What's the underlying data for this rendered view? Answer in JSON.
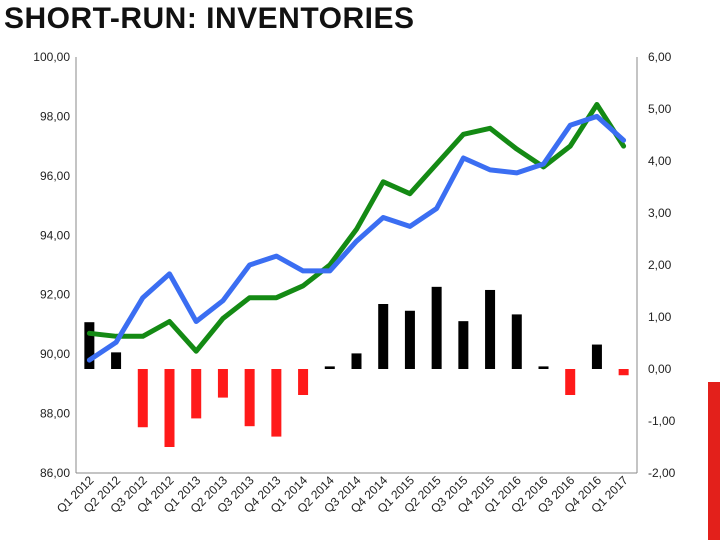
{
  "header": {
    "title": "SHORT-RUN: INVENTORIES"
  },
  "colors": {
    "accent_strip": "#e3201b",
    "bar_positive": "#000000",
    "bar_negative": "#ff1a1a",
    "series_green": "#148a14",
    "series_blue": "#3b6ef2"
  },
  "chart_data": {
    "type": "bar+line",
    "title": "SHORT-RUN: INVENTORIES",
    "categories": [
      "Q1 2012",
      "Q2 2012",
      "Q3 2012",
      "Q4 2012",
      "Q1 2013",
      "Q2 2013",
      "Q3 2013",
      "Q4 2013",
      "Q1 2014",
      "Q2 2014",
      "Q3 2014",
      "Q4 2014",
      "Q1 2015",
      "Q2 2015",
      "Q3 2015",
      "Q4 2015",
      "Q1 2016",
      "Q2 2016",
      "Q3 2016",
      "Q4 2016",
      "Q1 2017"
    ],
    "y_left": {
      "ylim": [
        86,
        100
      ],
      "ticks": [
        "86,00",
        "88,00",
        "90,00",
        "92,00",
        "94,00",
        "96,00",
        "98,00",
        "100,00"
      ]
    },
    "y_right": {
      "ylim": [
        -2,
        6
      ],
      "ticks": [
        "-2,00",
        "-1,00",
        "0,00",
        "1,00",
        "2,00",
        "3,00",
        "4,00",
        "5,00",
        "6,00"
      ]
    },
    "series": [
      {
        "type": "bar",
        "axis": "right",
        "values": [
          0.9,
          0.32,
          -1.12,
          -1.5,
          -0.95,
          -0.55,
          -1.1,
          -1.3,
          -0.5,
          0.05,
          0.3,
          1.25,
          1.12,
          1.58,
          0.92,
          1.52,
          1.05,
          0.05,
          -0.5,
          0.47,
          -0.12
        ]
      },
      {
        "type": "line",
        "axis": "left",
        "values": [
          90.7,
          90.6,
          90.6,
          91.1,
          90.1,
          91.2,
          91.9,
          91.9,
          92.3,
          93.0,
          94.2,
          95.8,
          95.4,
          96.4,
          97.4,
          97.6,
          96.9,
          96.3,
          97.0,
          98.4,
          97.0
        ]
      },
      {
        "type": "line",
        "axis": "left",
        "values": [
          89.8,
          90.4,
          91.9,
          92.7,
          91.1,
          91.8,
          93.0,
          93.3,
          92.8,
          92.8,
          93.8,
          94.6,
          94.3,
          94.9,
          96.6,
          96.2,
          96.1,
          96.4,
          97.7,
          98.0,
          97.2
        ]
      }
    ]
  }
}
